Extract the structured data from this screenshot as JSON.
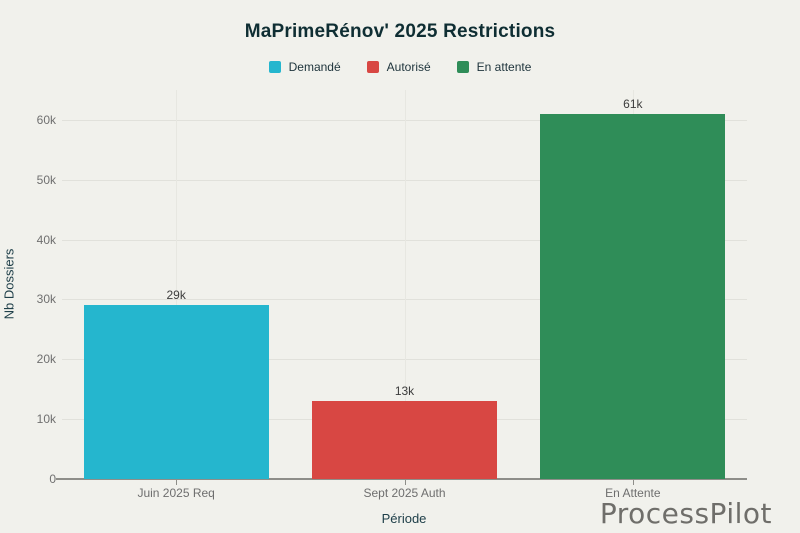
{
  "watermark": "ProcessPilot",
  "chart_data": {
    "type": "bar",
    "title": "MaPrimeRénov' 2025 Restrictions",
    "categories": [
      "Juin 2025 Req",
      "Sept 2025 Auth",
      "En Attente"
    ],
    "values": [
      29000,
      13000,
      61000
    ],
    "value_labels": [
      "29k",
      "13k",
      "61k"
    ],
    "bar_colors": [
      "#25b6ce",
      "#d84743",
      "#2f8d58"
    ],
    "legend": [
      {
        "label": "Demandé",
        "color": "#25b6ce"
      },
      {
        "label": "Autorisé",
        "color": "#d84743"
      },
      {
        "label": "En attente",
        "color": "#2f8d58"
      }
    ],
    "legend_position": "top",
    "xlabel": "Période",
    "ylabel": "Nb Dossiers",
    "ylim": [
      0,
      65000
    ],
    "yticks": [
      {
        "value": 0,
        "label": "0"
      },
      {
        "value": 10000,
        "label": "10k"
      },
      {
        "value": 20000,
        "label": "20k"
      },
      {
        "value": 30000,
        "label": "30k"
      },
      {
        "value": 40000,
        "label": "40k"
      },
      {
        "value": 50000,
        "label": "50k"
      },
      {
        "value": 60000,
        "label": "60k"
      }
    ],
    "grid": true,
    "background": "#f1f1ec",
    "title_color": "#0f2e33",
    "axis_title_color": "#20404a",
    "tick_label_color": "#707070"
  }
}
